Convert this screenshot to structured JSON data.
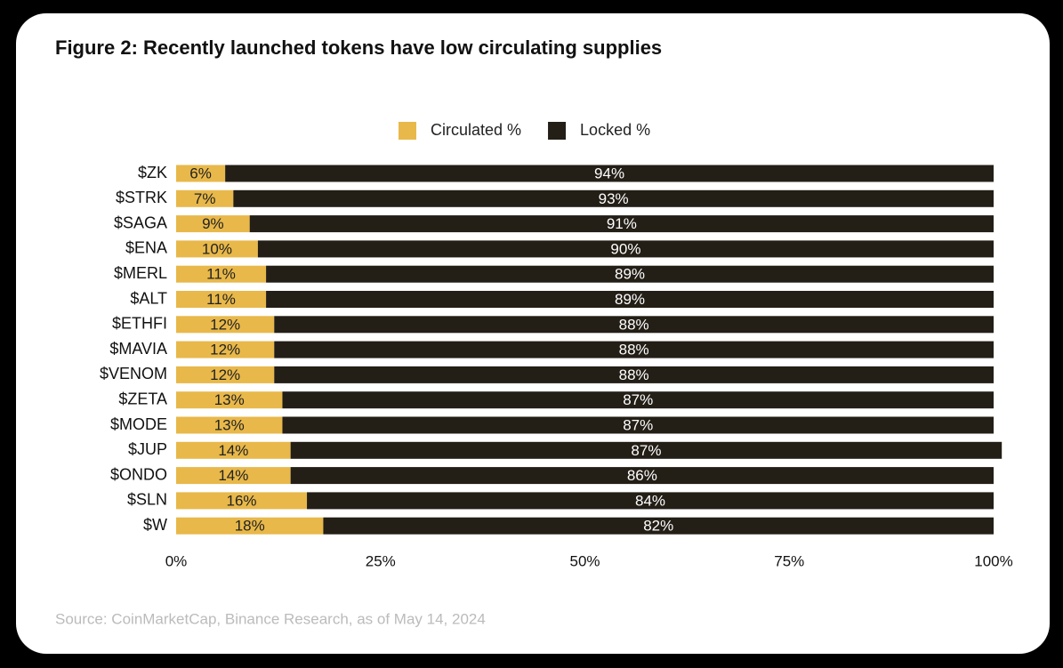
{
  "chart_data": {
    "type": "stacked-bar-horizontal",
    "title": "Figure 2: Recently launched tokens have low circulating supplies",
    "source": "Source: CoinMarketCap, Binance Research, as of May 14, 2024",
    "categories": [
      "$ZK",
      "$STRK",
      "$SAGA",
      "$ENA",
      "$MERL",
      "$ALT",
      "$ETHFI",
      "$MAVIA",
      "$VENOM",
      "$ZETA",
      "$MODE",
      "$JUP",
      "$ONDO",
      "$SLN",
      "$W"
    ],
    "series": [
      {
        "name": "Circulated %",
        "color": "#e8b84a",
        "values": [
          6,
          7,
          9,
          10,
          11,
          11,
          12,
          12,
          12,
          13,
          13,
          14,
          14,
          16,
          18
        ],
        "value_labels": [
          "6%",
          "7%",
          "9%",
          "10%",
          "11%",
          "11%",
          "12%",
          "12%",
          "12%",
          "13%",
          "13%",
          "14%",
          "14%",
          "16%",
          "18%"
        ]
      },
      {
        "name": "Locked %",
        "color": "#231e16",
        "values": [
          94,
          93,
          91,
          90,
          89,
          89,
          88,
          88,
          88,
          87,
          87,
          87,
          86,
          84,
          82
        ],
        "value_labels": [
          "94%",
          "93%",
          "91%",
          "90%",
          "89%",
          "89%",
          "88%",
          "88%",
          "88%",
          "87%",
          "87%",
          "87%",
          "86%",
          "84%",
          "82%"
        ]
      }
    ],
    "xlim": [
      0,
      100
    ],
    "xticks": [
      {
        "value": 0,
        "label": "0%"
      },
      {
        "value": 25,
        "label": "25%"
      },
      {
        "value": 50,
        "label": "50%"
      },
      {
        "value": 75,
        "label": "75%"
      },
      {
        "value": 100,
        "label": "100%"
      }
    ],
    "grid": false,
    "legend": "top"
  }
}
